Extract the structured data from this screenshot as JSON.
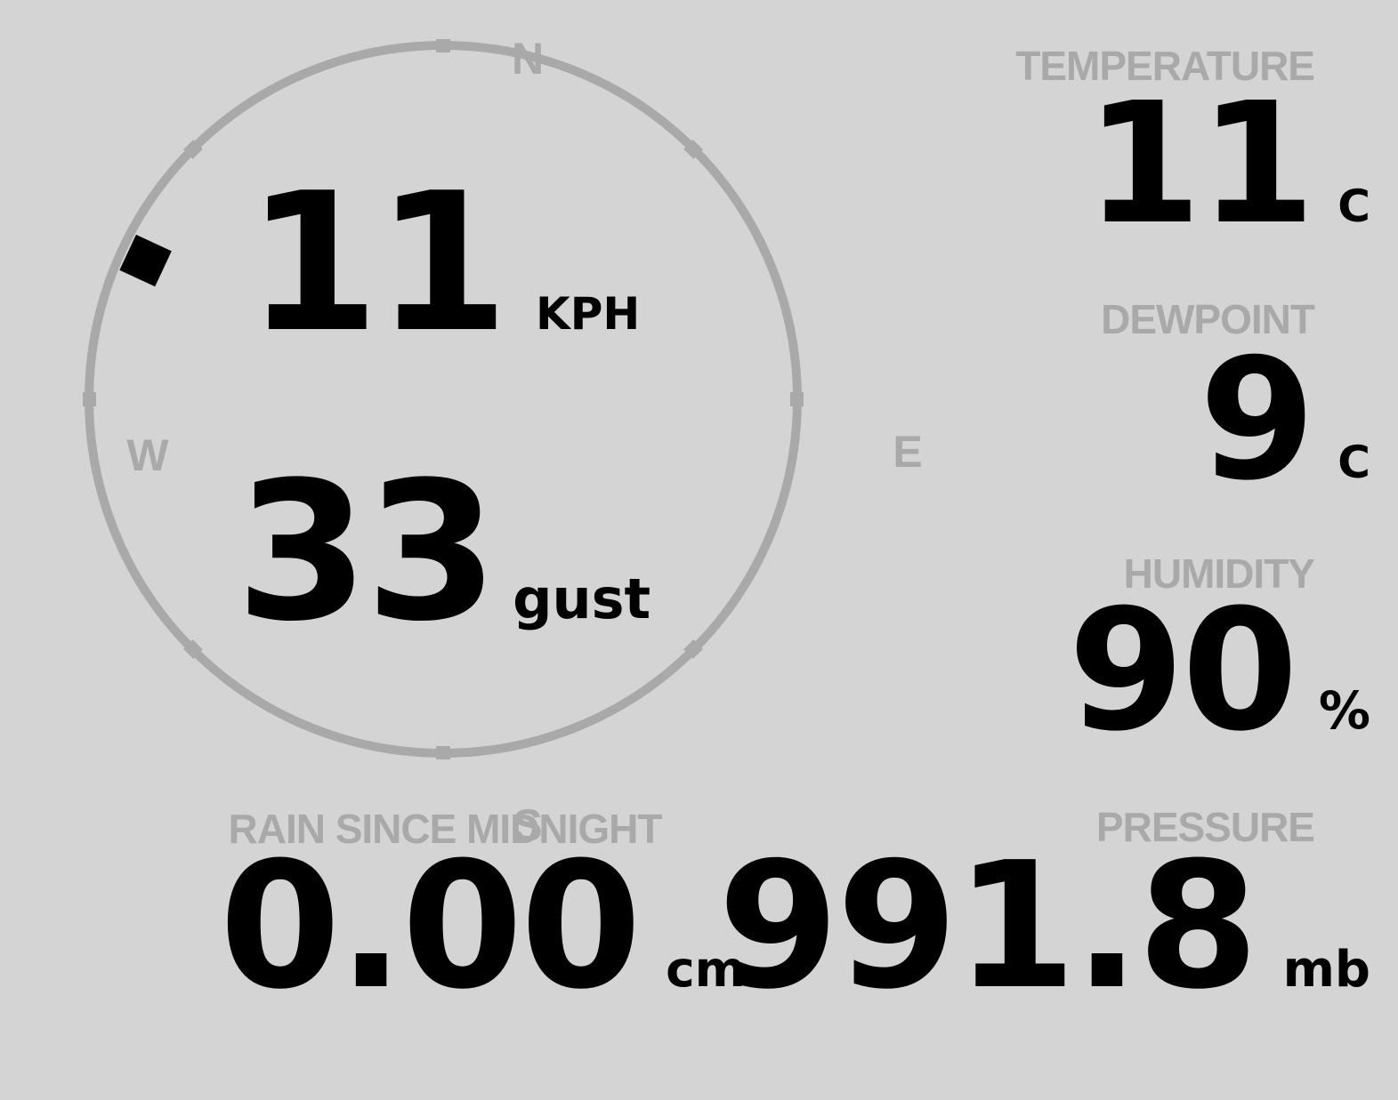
{
  "theme": {
    "background": "#d4d4d4",
    "muted": "#a9a9a9",
    "ink": "#000000"
  },
  "wind": {
    "direction_deg": 295,
    "compass_labels": {
      "north": "N",
      "east": "E",
      "south": "S",
      "west": "W"
    },
    "speed": {
      "value": "11",
      "unit": "KPH"
    },
    "gust": {
      "value": "33",
      "unit": "gust"
    }
  },
  "metrics": {
    "temperature": {
      "label": "TEMPERATURE",
      "value": "11",
      "unit": "C"
    },
    "dewpoint": {
      "label": "DEWPOINT",
      "value": "9",
      "unit": "C"
    },
    "humidity": {
      "label": "HUMIDITY",
      "value": "90",
      "unit": "%"
    },
    "rain": {
      "label": "RAIN SINCE MIDNIGHT",
      "value": "0.00",
      "unit": "cm"
    },
    "pressure": {
      "label": "PRESSURE",
      "value": "991.8",
      "unit": "mb"
    }
  }
}
